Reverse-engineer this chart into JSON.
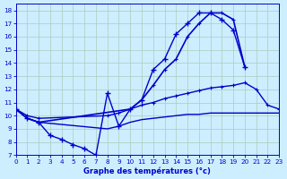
{
  "xlabel": "Graphe des températures (°c)",
  "xlim": [
    0,
    23
  ],
  "ylim": [
    7,
    18.5
  ],
  "xticks": [
    0,
    1,
    2,
    3,
    4,
    5,
    6,
    7,
    8,
    9,
    10,
    11,
    12,
    13,
    14,
    15,
    16,
    17,
    18,
    19,
    20,
    21,
    22,
    23
  ],
  "yticks": [
    7,
    8,
    9,
    10,
    11,
    12,
    13,
    14,
    15,
    16,
    17,
    18
  ],
  "bg_color": "#cceeff",
  "grid_color": "#aaccbb",
  "line_color": "#0000cc",
  "curve1_x": [
    0,
    1,
    2,
    3,
    4,
    5,
    6,
    7,
    8,
    9,
    10,
    11,
    12,
    13,
    14,
    15,
    16,
    17,
    18,
    19,
    20
  ],
  "curve1_y": [
    10.5,
    9.8,
    9.5,
    8.5,
    8.2,
    7.8,
    7.5,
    7.0,
    11.7,
    9.2,
    10.5,
    11.2,
    13.5,
    14.3,
    16.2,
    17.0,
    17.8,
    17.8,
    17.3,
    16.5,
    13.7
  ],
  "curve2_x": [
    0,
    1,
    2,
    10,
    11,
    12,
    13,
    14,
    15,
    16,
    17,
    18,
    19,
    20
  ],
  "curve2_y": [
    10.5,
    9.8,
    9.5,
    10.5,
    11.2,
    12.3,
    13.5,
    14.3,
    16.0,
    17.0,
    17.8,
    17.8,
    17.3,
    13.7
  ],
  "curve3_x": [
    0,
    1,
    2,
    8,
    9,
    10,
    11,
    12,
    13,
    14,
    15,
    16,
    17,
    18,
    19,
    20,
    21,
    22,
    23
  ],
  "curve3_y": [
    10.5,
    10.0,
    9.8,
    10.0,
    10.2,
    10.5,
    10.8,
    11.0,
    11.3,
    11.5,
    11.7,
    11.9,
    12.1,
    12.2,
    12.3,
    12.5,
    12.0,
    10.8,
    10.5
  ],
  "curve4_x": [
    0,
    1,
    2,
    8,
    9,
    10,
    11,
    12,
    13,
    14,
    15,
    16,
    17,
    18,
    19,
    20,
    21,
    22,
    23
  ],
  "curve4_y": [
    10.5,
    9.8,
    9.5,
    9.0,
    9.2,
    9.5,
    9.7,
    9.8,
    9.9,
    10.0,
    10.1,
    10.1,
    10.2,
    10.2,
    10.2,
    10.2,
    10.2,
    10.2,
    10.2
  ]
}
